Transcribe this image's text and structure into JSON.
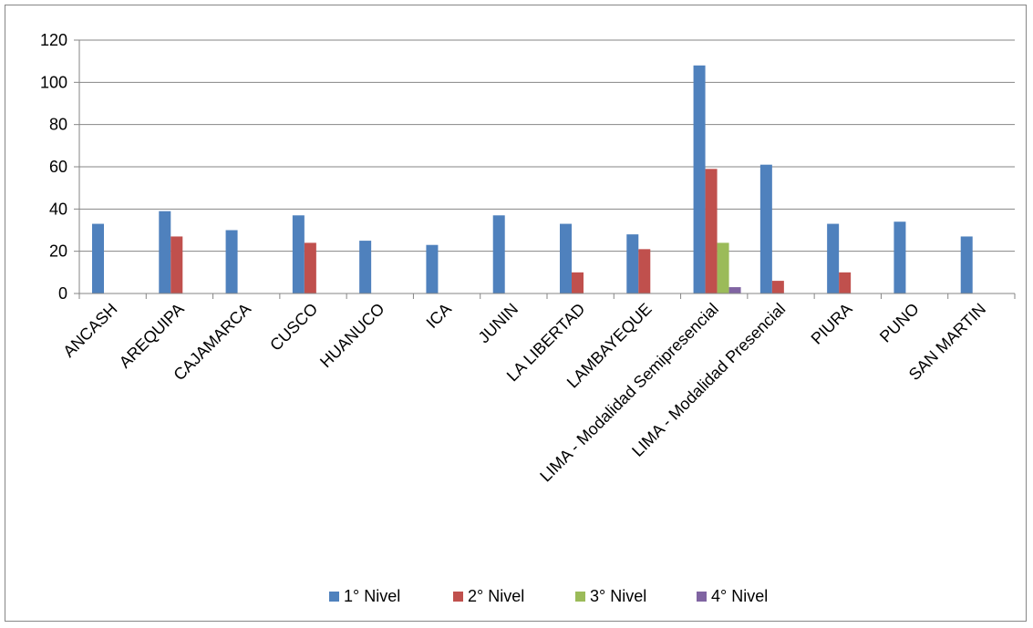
{
  "chart_data": {
    "type": "bar",
    "categories": [
      "ANCASH",
      "AREQUIPA",
      "CAJAMARCA",
      "CUSCO",
      "HUANUCO",
      "ICA",
      "JUNIN",
      "LA LIBERTAD",
      "LAMBAYEQUE",
      "LIMA - Modalidad Semipresencial",
      "LIMA - Modalidad Presencial",
      "PIURA",
      "PUNO",
      "SAN MARTIN"
    ],
    "series": [
      {
        "name": "1° Nivel",
        "color": "#4f81bd",
        "values": [
          33,
          39,
          30,
          37,
          25,
          23,
          37,
          33,
          28,
          108,
          61,
          33,
          34,
          27
        ]
      },
      {
        "name": "2° Nivel",
        "color": "#c0504d",
        "values": [
          0,
          27,
          0,
          24,
          0,
          0,
          0,
          10,
          21,
          59,
          6,
          10,
          0,
          0
        ]
      },
      {
        "name": "3° Nivel",
        "color": "#9bbb59",
        "values": [
          0,
          0,
          0,
          0,
          0,
          0,
          0,
          0,
          0,
          24,
          0,
          0,
          0,
          0
        ]
      },
      {
        "name": "4° Nivel",
        "color": "#8064a2",
        "values": [
          0,
          0,
          0,
          0,
          0,
          0,
          0,
          0,
          0,
          3,
          0,
          0,
          0,
          0
        ]
      }
    ],
    "yticks": [
      "0",
      "20",
      "40",
      "60",
      "80",
      "100",
      "120"
    ],
    "ylim": [
      0,
      120
    ],
    "grid": true,
    "legend_position": "bottom"
  }
}
